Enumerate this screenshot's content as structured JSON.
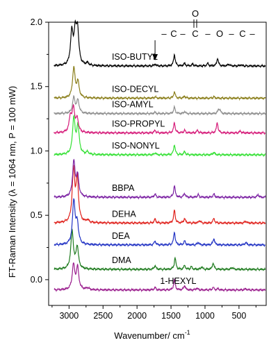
{
  "chart_data": {
    "type": "line",
    "title": "",
    "xlabel": "Wavenumber/ cm",
    "xlabel_superscript": "-1",
    "ylabel": "FT-Raman Intensity (λ = 1064 nm, P = 100 mW)",
    "xlim": [
      3300,
      100
    ],
    "ylim": [
      -0.2,
      2.0
    ],
    "x_ticks": [
      3000,
      2500,
      2000,
      1500,
      1000,
      500
    ],
    "y_ticks": [
      0.0,
      0.5,
      1.0,
      1.5,
      2.0
    ],
    "y_tick_labels": [
      "0.0",
      "0.5",
      "1.0",
      "1.5",
      "2.0"
    ],
    "grid": false,
    "legend": "none",
    "annotation": {
      "structure": [
        "–",
        "C",
        "–",
        "C",
        "–",
        "O",
        "–",
        "C",
        "–"
      ],
      "carbonyl_oxygen": "O",
      "arrow_at_x": 1735
    },
    "series": [
      {
        "name": "1-HEXYL",
        "color": "#9b1f8e",
        "baseline": -0.08,
        "label_x": 1660,
        "label_y_offset": 0.07,
        "peaks": [
          [
            2935,
            0.19
          ],
          [
            2875,
            0.17
          ],
          [
            2728,
            0.015
          ],
          [
            1735,
            0.02
          ],
          [
            1450,
            0.08
          ],
          [
            1300,
            0.035
          ],
          [
            1120,
            0.015
          ],
          [
            880,
            0.02
          ],
          [
            810,
            0.01
          ],
          [
            400,
            0.01
          ]
        ]
      },
      {
        "name": "DMA",
        "color": "#1e7b1e",
        "baseline": 0.08,
        "label_x": 2370,
        "label_y_offset": 0.07,
        "peaks": [
          [
            2955,
            0.3
          ],
          [
            2880,
            0.17
          ],
          [
            1735,
            0.03
          ],
          [
            1440,
            0.09
          ],
          [
            1300,
            0.03
          ],
          [
            1200,
            0.02
          ],
          [
            1050,
            0.02
          ],
          [
            880,
            0.05
          ],
          [
            600,
            0.015
          ]
        ]
      },
      {
        "name": "DEA",
        "color": "#2233c4",
        "baseline": 0.27,
        "label_x": 2370,
        "label_y_offset": 0.07,
        "peaks": [
          [
            2930,
            0.34
          ],
          [
            2880,
            0.16
          ],
          [
            1735,
            0.03
          ],
          [
            1450,
            0.1
          ],
          [
            1300,
            0.03
          ],
          [
            1100,
            0.02
          ],
          [
            870,
            0.05
          ],
          [
            400,
            0.02
          ]
        ]
      },
      {
        "name": "DEHA",
        "color": "#e0221d",
        "baseline": 0.44,
        "label_x": 2370,
        "label_y_offset": 0.07,
        "peaks": [
          [
            2935,
            0.4
          ],
          [
            2880,
            0.33
          ],
          [
            2728,
            0.02
          ],
          [
            1735,
            0.03
          ],
          [
            1450,
            0.1
          ],
          [
            1300,
            0.035
          ],
          [
            1080,
            0.02
          ],
          [
            870,
            0.035
          ],
          [
            400,
            0.015
          ]
        ]
      },
      {
        "name": "BBPA",
        "color": "#7a1fa2",
        "baseline": 0.64,
        "label_x": 2370,
        "label_y_offset": 0.07,
        "peaks": [
          [
            2930,
            0.27
          ],
          [
            2875,
            0.16
          ],
          [
            1735,
            0.025
          ],
          [
            1450,
            0.09
          ],
          [
            1300,
            0.03
          ],
          [
            1100,
            0.02
          ],
          [
            870,
            0.025
          ],
          [
            220,
            0.02
          ]
        ]
      },
      {
        "name": "ISO-NONYL",
        "color": "#33e033",
        "baseline": 0.97,
        "label_x": 2370,
        "label_y_offset": 0.07,
        "peaks": [
          [
            2930,
            0.28
          ],
          [
            2870,
            0.22
          ],
          [
            2728,
            0.02
          ],
          [
            1735,
            0.015
          ],
          [
            1450,
            0.08
          ],
          [
            1300,
            0.025
          ],
          [
            870,
            0.02
          ]
        ]
      },
      {
        "name": "ISO-PROPYL",
        "color": "#d61c7a",
        "baseline": 1.14,
        "label_x": 2370,
        "label_y_offset": 0.07,
        "peaks": [
          [
            2980,
            0.12
          ],
          [
            2935,
            0.18
          ],
          [
            2880,
            0.1
          ],
          [
            1735,
            0.02
          ],
          [
            1450,
            0.08
          ],
          [
            1300,
            0.02
          ],
          [
            1110,
            0.02
          ],
          [
            820,
            0.08
          ],
          [
            480,
            0.015
          ]
        ]
      },
      {
        "name": "ISO-AMYL",
        "color": "#8e8e8e",
        "baseline": 1.29,
        "label_x": 2370,
        "label_y_offset": 0.07,
        "peaks": [
          [
            2930,
            0.12
          ],
          [
            2870,
            0.1
          ],
          [
            1735,
            0.01
          ],
          [
            1450,
            0.05
          ],
          [
            1300,
            0.015
          ],
          [
            800,
            0.03
          ],
          [
            780,
            0.02
          ]
        ]
      },
      {
        "name": "ISO-DECYL",
        "color": "#8a7e1a",
        "baseline": 1.41,
        "label_x": 2370,
        "label_y_offset": 0.07,
        "peaks": [
          [
            2930,
            0.23
          ],
          [
            2870,
            0.12
          ],
          [
            1735,
            0.01
          ],
          [
            1450,
            0.05
          ],
          [
            1300,
            0.015
          ],
          [
            870,
            0.01
          ]
        ]
      },
      {
        "name": "ISO-BUTYL",
        "color": "#000000",
        "baseline": 1.66,
        "label_x": 2370,
        "label_y_offset": 0.07,
        "peaks": [
          [
            2960,
            0.25
          ],
          [
            2910,
            0.23
          ],
          [
            2875,
            0.26
          ],
          [
            2728,
            0.02
          ],
          [
            1735,
            0.015
          ],
          [
            1450,
            0.09
          ],
          [
            1300,
            0.02
          ],
          [
            1180,
            0.015
          ],
          [
            960,
            0.02
          ],
          [
            815,
            0.06
          ],
          [
            650,
            0.015
          ],
          [
            470,
            0.01
          ]
        ]
      }
    ]
  }
}
